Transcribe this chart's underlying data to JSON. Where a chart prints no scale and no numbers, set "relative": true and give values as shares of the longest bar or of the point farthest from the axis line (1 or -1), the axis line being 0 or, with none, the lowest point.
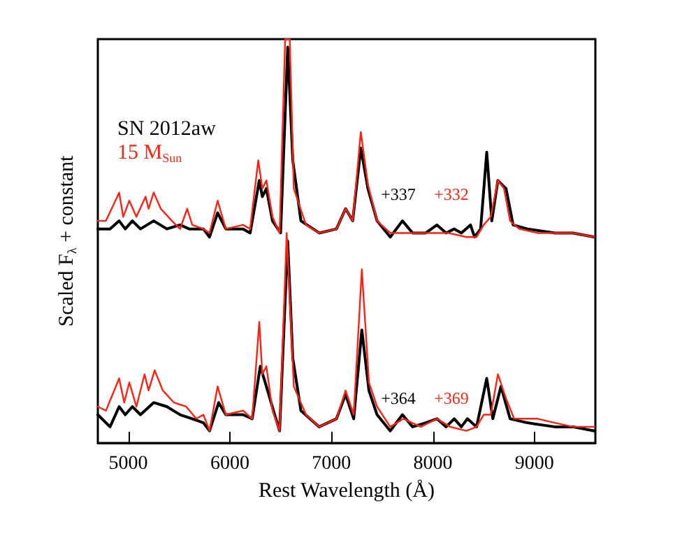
{
  "chart_data": {
    "type": "line",
    "relative": true,
    "xlabel": "Rest Wavelength (Å)",
    "ylabel": "Scaled F$_{λ}$ + constant",
    "xlim": [
      4700,
      9600
    ],
    "xticks": [
      5000,
      6000,
      7000,
      8000,
      9000
    ],
    "legend": "top left",
    "grid": false,
    "marker": "none",
    "line_style": "solid",
    "annotations": [
      "+337",
      "+332",
      "+364",
      "+369"
    ],
    "series": [
      {
        "name": "SN 2012aw",
        "color": "#000000",
        "x": [
          4700,
          4820,
          4910,
          4970,
          5040,
          5120,
          5250,
          5380,
          5510,
          5600,
          5740,
          5800,
          5880,
          5960,
          6130,
          6200,
          6290,
          6320,
          6360,
          6420,
          6500,
          6570,
          6620,
          6700,
          6880,
          7050,
          7140,
          7210,
          7290,
          7360,
          7450,
          7580,
          7700,
          7800,
          7930,
          8040,
          8130,
          8210,
          8280,
          8370,
          8410,
          8470,
          8530,
          8580,
          8640,
          8720,
          8790,
          8930,
          9200,
          9380,
          9590
        ],
        "values": [
          0.53,
          0.53,
          0.55,
          0.53,
          0.55,
          0.53,
          0.55,
          0.53,
          0.54,
          0.53,
          0.53,
          0.51,
          0.57,
          0.53,
          0.53,
          0.52,
          0.65,
          0.61,
          0.63,
          0.55,
          0.52,
          0.98,
          0.7,
          0.55,
          0.52,
          0.53,
          0.58,
          0.55,
          0.73,
          0.63,
          0.55,
          0.51,
          0.55,
          0.52,
          0.52,
          0.54,
          0.52,
          0.53,
          0.52,
          0.54,
          0.51,
          0.53,
          0.72,
          0.55,
          0.65,
          0.63,
          0.54,
          0.53,
          0.52,
          0.52,
          0.51
        ]
      },
      {
        "name": "15 M$_{Sun}$",
        "color": "#ff2010",
        "x": [
          4700,
          4780,
          4910,
          4950,
          5010,
          5080,
          5170,
          5200,
          5250,
          5320,
          5430,
          5510,
          5580,
          5630,
          5740,
          5800,
          5880,
          5960,
          6130,
          6200,
          6280,
          6320,
          6360,
          6420,
          6490,
          6545,
          6590,
          6630,
          6750,
          6880,
          7050,
          7140,
          7210,
          7290,
          7360,
          7450,
          7580,
          7710,
          7880,
          8010,
          8150,
          8330,
          8430,
          8500,
          8570,
          8640,
          8700,
          8760,
          8850,
          9030,
          9200,
          9380,
          9590
        ],
        "values": [
          0.55,
          0.55,
          0.62,
          0.56,
          0.6,
          0.56,
          0.61,
          0.58,
          0.62,
          0.58,
          0.55,
          0.53,
          0.58,
          0.54,
          0.53,
          0.52,
          0.6,
          0.53,
          0.54,
          0.53,
          0.7,
          0.63,
          0.65,
          0.56,
          0.52,
          1.0,
          1.0,
          0.63,
          0.54,
          0.52,
          0.53,
          0.58,
          0.55,
          0.77,
          0.64,
          0.55,
          0.52,
          0.52,
          0.52,
          0.52,
          0.52,
          0.51,
          0.51,
          0.54,
          0.56,
          0.65,
          0.63,
          0.55,
          0.53,
          0.52,
          0.52,
          0.52,
          0.51
        ]
      },
      {
        "color": "#000000",
        "x": [
          4700,
          4820,
          4910,
          4970,
          5040,
          5120,
          5250,
          5380,
          5510,
          5630,
          5740,
          5800,
          5890,
          5960,
          6130,
          6220,
          6300,
          6360,
          6430,
          6490,
          6570,
          6620,
          6700,
          6880,
          7050,
          7140,
          7220,
          7300,
          7370,
          7450,
          7580,
          7700,
          7800,
          7930,
          8040,
          8130,
          8210,
          8280,
          8340,
          8430,
          8530,
          8590,
          8670,
          8760,
          8930,
          9200,
          9380,
          9590
        ],
        "values": [
          0.07,
          0.04,
          0.09,
          0.07,
          0.09,
          0.07,
          0.1,
          0.09,
          0.07,
          0.06,
          0.05,
          0.03,
          0.1,
          0.07,
          0.07,
          0.06,
          0.19,
          0.14,
          0.08,
          0.03,
          0.5,
          0.21,
          0.08,
          0.04,
          0.06,
          0.12,
          0.06,
          0.28,
          0.13,
          0.07,
          0.03,
          0.07,
          0.04,
          0.05,
          0.06,
          0.04,
          0.06,
          0.04,
          0.06,
          0.04,
          0.16,
          0.06,
          0.14,
          0.06,
          0.05,
          0.04,
          0.04,
          0.03
        ]
      },
      {
        "color": "#ff2010",
        "x": [
          4700,
          4780,
          4910,
          4960,
          5010,
          5080,
          5160,
          5200,
          5260,
          5340,
          5450,
          5570,
          5670,
          5740,
          5800,
          5880,
          5960,
          6130,
          6220,
          6290,
          6320,
          6360,
          6420,
          6490,
          6560,
          6630,
          6750,
          6880,
          7050,
          7140,
          7220,
          7300,
          7370,
          7450,
          7580,
          7710,
          7880,
          8040,
          8170,
          8330,
          8430,
          8500,
          8570,
          8640,
          8720,
          8800,
          9030,
          9200,
          9380,
          9590
        ],
        "values": [
          0.09,
          0.08,
          0.16,
          0.1,
          0.15,
          0.09,
          0.17,
          0.13,
          0.18,
          0.13,
          0.1,
          0.09,
          0.06,
          0.07,
          0.03,
          0.14,
          0.07,
          0.08,
          0.06,
          0.3,
          0.17,
          0.19,
          0.08,
          0.03,
          0.52,
          0.14,
          0.07,
          0.04,
          0.06,
          0.13,
          0.07,
          0.43,
          0.15,
          0.09,
          0.04,
          0.06,
          0.04,
          0.06,
          0.04,
          0.03,
          0.04,
          0.07,
          0.07,
          0.17,
          0.11,
          0.06,
          0.06,
          0.05,
          0.04,
          0.04
        ]
      }
    ]
  }
}
